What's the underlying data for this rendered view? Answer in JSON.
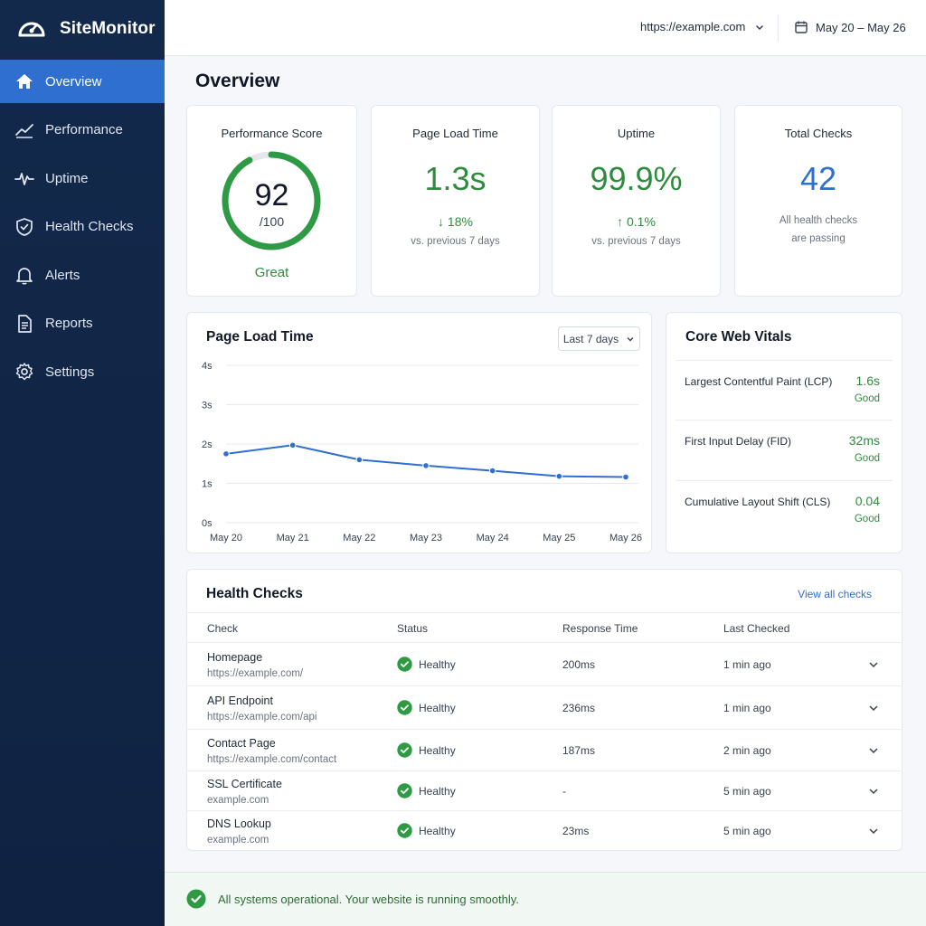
{
  "app": {
    "name": "SiteMonitor"
  },
  "sidebar": {
    "items": [
      {
        "label": "Overview",
        "icon": "home-icon",
        "active": true
      },
      {
        "label": "Performance",
        "icon": "chart-line-icon"
      },
      {
        "label": "Uptime",
        "icon": "pulse-icon"
      },
      {
        "label": "Health Checks",
        "icon": "shield-check-icon"
      },
      {
        "label": "Alerts",
        "icon": "bell-icon"
      },
      {
        "label": "Reports",
        "icon": "document-icon"
      },
      {
        "label": "Settings",
        "icon": "gear-icon"
      }
    ]
  },
  "topbar": {
    "site_url": "https://example.com",
    "date_range": "May 20 – May 26"
  },
  "page": {
    "title": "Overview"
  },
  "kpis": {
    "score": {
      "title": "Performance Score",
      "value": "92",
      "of": "/100",
      "label": "Great",
      "fraction": 0.92
    },
    "load": {
      "title": "Page Load Time",
      "value": "1.3s",
      "delta": "↓ 18%",
      "sub": "vs. previous 7 days"
    },
    "uptime": {
      "title": "Uptime",
      "value": "99.9%",
      "delta": "↑ 0.1%",
      "sub": "vs. previous 7 days"
    },
    "checks": {
      "title": "Total Checks",
      "value": "42",
      "sub1": "All health checks",
      "sub2": "are passing"
    }
  },
  "load_chart": {
    "title": "Page Load Time",
    "range": "Last 7 days"
  },
  "chart_data": {
    "type": "line",
    "categories": [
      "May 20",
      "May 21",
      "May 22",
      "May 23",
      "May 24",
      "May 25",
      "May 26"
    ],
    "values": [
      1.75,
      1.97,
      1.6,
      1.45,
      1.32,
      1.18,
      1.16
    ],
    "ylim": [
      0,
      4
    ],
    "yticks": [
      "0s",
      "1s",
      "2s",
      "3s",
      "4s"
    ],
    "grid": true
  },
  "vitals": {
    "title": "Core Web Vitals",
    "rows": [
      {
        "name": "Largest Contentful Paint (LCP)",
        "value": "1.6s",
        "status": "Good"
      },
      {
        "name": "First Input Delay (FID)",
        "value": "32ms",
        "status": "Good"
      },
      {
        "name": "Cumulative Layout Shift (CLS)",
        "value": "0.04",
        "status": "Good"
      }
    ]
  },
  "health": {
    "title": "Health Checks",
    "view_all": "View all checks",
    "columns": [
      "Check",
      "Status",
      "Response Time",
      "Last Checked"
    ],
    "rows": [
      {
        "name": "Homepage",
        "url": "https://example.com/",
        "status": "Healthy",
        "response": "200ms",
        "last": "1 min ago"
      },
      {
        "name": "API Endpoint",
        "url": "https://example.com/api",
        "status": "Healthy",
        "response": "236ms",
        "last": "1 min ago"
      },
      {
        "name": "Contact Page",
        "url": "https://example.com/contact",
        "status": "Healthy",
        "response": "187ms",
        "last": "2 min ago"
      },
      {
        "name": "SSL Certificate",
        "url": "example.com",
        "status": "Healthy",
        "response": "-",
        "last": "5 min ago"
      },
      {
        "name": "DNS Lookup",
        "url": "example.com",
        "status": "Healthy",
        "response": "23ms",
        "last": "5 min ago"
      }
    ]
  },
  "footer": {
    "message": "All systems operational. Your website is running smoothly."
  },
  "colors": {
    "sidebar": "#13294b",
    "accent": "#2f6fd0",
    "good": "#2e8b3e",
    "score_track": "#e5e7eb"
  }
}
